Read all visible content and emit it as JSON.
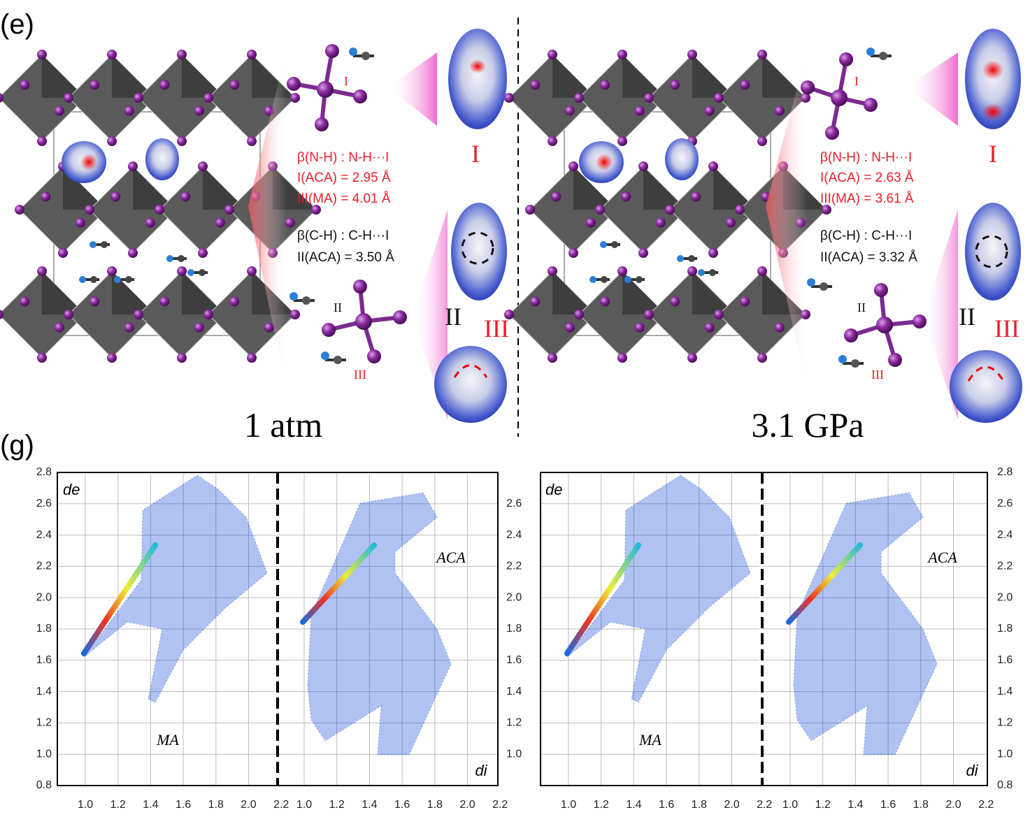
{
  "panel_e": {
    "label": "(e)",
    "conditions": [
      {
        "pressure": "1 atm",
        "nh_title": "β(N-H) : N-H···I",
        "nh_lines": [
          "I(ACA) = 2.95 Å",
          "III(MA) = 4.01 Å"
        ],
        "ch_title": "β(C-H) : C-H···I",
        "ch_lines": [
          "II(ACA) = 3.50 Å"
        ]
      },
      {
        "pressure": "3.1 GPa",
        "nh_title": "β(N-H) : N-H···I",
        "nh_lines": [
          "I(ACA) = 2.63 Å",
          "III(MA) = 3.61 Å"
        ],
        "ch_title": "β(C-H) : C-H···I",
        "ch_lines": [
          "II(ACA) = 3.32 Å"
        ]
      }
    ],
    "site_labels": [
      "I",
      "II",
      "III"
    ]
  },
  "panel_g": {
    "label": "(g)",
    "y_label": "de",
    "x_label": "di",
    "molecules": [
      "MA",
      "ACA"
    ],
    "yticks": [
      "2.8",
      "2.6",
      "2.4",
      "2.2",
      "2.0",
      "1.8",
      "1.6",
      "1.4",
      "1.2",
      "1.0",
      "0.8"
    ],
    "xticks": [
      "1.0",
      "1.2",
      "1.4",
      "1.6",
      "1.8",
      "2.0",
      "2.2"
    ]
  }
}
